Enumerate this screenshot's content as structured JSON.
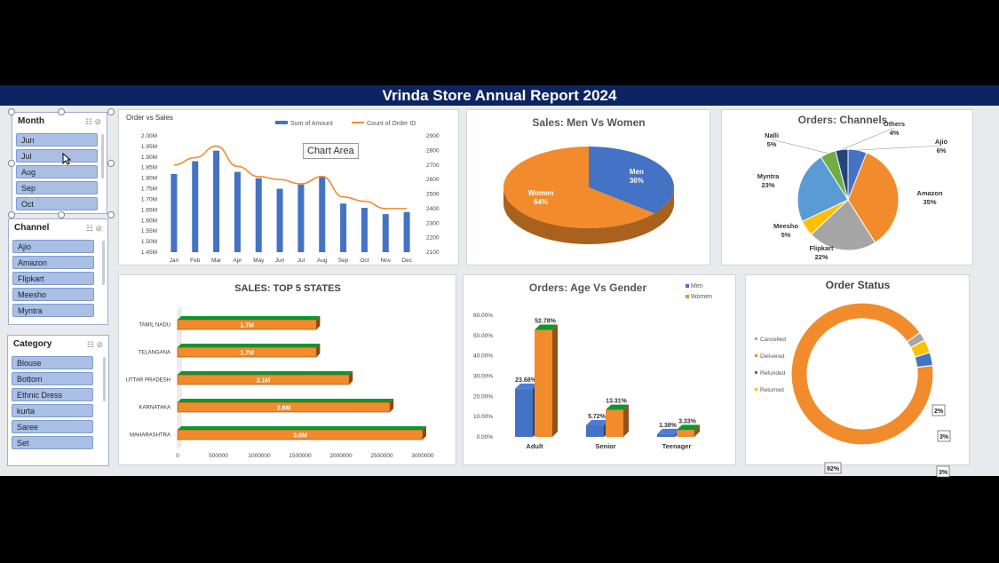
{
  "banner": {
    "title": "Vrinda Store Annual Report 2024"
  },
  "slicers": {
    "month": {
      "title": "Month",
      "items": [
        "Jun",
        "Jul",
        "Aug",
        "Sep",
        "Oct"
      ]
    },
    "channel": {
      "title": "Channel",
      "items": [
        "Ajio",
        "Amazon",
        "Flipkart",
        "Meesho",
        "Myntra"
      ]
    },
    "category": {
      "title": "Category",
      "items": [
        "Blouse",
        "Bottom",
        "Ethnic Dress",
        "kurta",
        "Saree",
        "Set"
      ]
    }
  },
  "tooltip": "Chart Area",
  "colors": {
    "blue": "#4472c4",
    "orange": "#f28b2b",
    "gray": "#a5a5a5",
    "yellow": "#ffc000",
    "lightblue": "#5b9bd5",
    "green": "#70ad47",
    "navy": "#264478",
    "banner": "#0c2461"
  },
  "chart_data": [
    {
      "id": "order-vs-sales",
      "type": "bar",
      "title": "Order vs Sales",
      "categories": [
        "Jan",
        "Feb",
        "Mar",
        "Apr",
        "May",
        "Jun",
        "Jul",
        "Aug",
        "Sep",
        "Oct",
        "Nov",
        "Dec"
      ],
      "series": [
        {
          "name": "Sum of Amount",
          "values": [
            1.82,
            1.88,
            1.93,
            1.83,
            1.8,
            1.75,
            1.77,
            1.81,
            1.68,
            1.66,
            1.63,
            1.64
          ],
          "axis": "left"
        },
        {
          "name": "Count of Order ID",
          "values": [
            2700,
            2750,
            2830,
            2690,
            2620,
            2600,
            2570,
            2620,
            2480,
            2450,
            2400,
            2400
          ],
          "axis": "right",
          "type": "line"
        }
      ],
      "y_left_ticks": [
        "1.45M",
        "1.50M",
        "1.55M",
        "1.60M",
        "1.65M",
        "1.70M",
        "1.75M",
        "1.80M",
        "1.85M",
        "1.90M",
        "1.95M",
        "2.00M"
      ],
      "y_right_ticks": [
        "2100",
        "2200",
        "2300",
        "2400",
        "2500",
        "2600",
        "2700",
        "2800",
        "2900"
      ],
      "ylim_left": [
        1.45,
        2.0
      ],
      "ylim_right": [
        2100,
        2900
      ],
      "legend": "top"
    },
    {
      "id": "sales-men-women",
      "type": "pie",
      "title": "Sales: Men Vs Women",
      "slices": [
        {
          "name": "Men",
          "value": 36,
          "label": "36%"
        },
        {
          "name": "Women",
          "value": 64,
          "label": "64%"
        }
      ]
    },
    {
      "id": "orders-channels",
      "type": "pie",
      "title": "Orders: Channels",
      "slices": [
        {
          "name": "Ajio",
          "value": 6,
          "label": "6%"
        },
        {
          "name": "Amazon",
          "value": 35,
          "label": "35%"
        },
        {
          "name": "Flipkart",
          "value": 22,
          "label": "22%"
        },
        {
          "name": "Meesho",
          "value": 5,
          "label": "5%"
        },
        {
          "name": "Myntra",
          "value": 23,
          "label": "23%"
        },
        {
          "name": "Nalli",
          "value": 5,
          "label": "5%"
        },
        {
          "name": "Others",
          "value": 4,
          "label": "4%"
        }
      ]
    },
    {
      "id": "top-5-states",
      "type": "bar",
      "orientation": "horizontal",
      "title": "SALES: TOP 5 STATES",
      "categories": [
        "TAMIL NADU",
        "TELANGANA",
        "UTTAR PRADESH",
        "KARNATAKA",
        "MAHARASHTRA"
      ],
      "values": [
        1700000,
        1700000,
        2100000,
        2600000,
        3000000
      ],
      "value_labels": [
        "1.7M",
        "1.7M",
        "2.1M",
        "2.6M",
        "3.0M"
      ],
      "x_ticks": [
        "0",
        "500000",
        "1000000",
        "1500000",
        "2000000",
        "2500000",
        "3000000"
      ],
      "xlim": [
        0,
        3000000
      ]
    },
    {
      "id": "age-vs-gender",
      "type": "bar",
      "title": "Orders: Age Vs Gender",
      "categories": [
        "Adult",
        "Senior",
        "Teenager"
      ],
      "series": [
        {
          "name": "Men",
          "values": [
            23.68,
            5.72,
            1.38
          ],
          "labels": [
            "23.68%",
            "5.72%",
            "1.38%"
          ]
        },
        {
          "name": "Women",
          "values": [
            52.78,
            13.31,
            3.33
          ],
          "labels": [
            "52.78%",
            "13.31%",
            "3.33%"
          ]
        }
      ],
      "y_ticks": [
        "0.00%",
        "10.00%",
        "20.00%",
        "30.00%",
        "40.00%",
        "50.00%",
        "60.00%"
      ],
      "ylim": [
        0,
        60
      ],
      "legend": "top-right"
    },
    {
      "id": "order-status",
      "type": "pie",
      "subtype": "doughnut",
      "title": "Order Status",
      "slices": [
        {
          "name": "Cancelled",
          "value": 2,
          "label": "2%"
        },
        {
          "name": "Delivered",
          "value": 92,
          "label": "92%"
        },
        {
          "name": "Refunded",
          "value": 3,
          "label": "3%"
        },
        {
          "name": "Returned",
          "value": 3,
          "label": "3%"
        }
      ],
      "legend": "left"
    }
  ]
}
